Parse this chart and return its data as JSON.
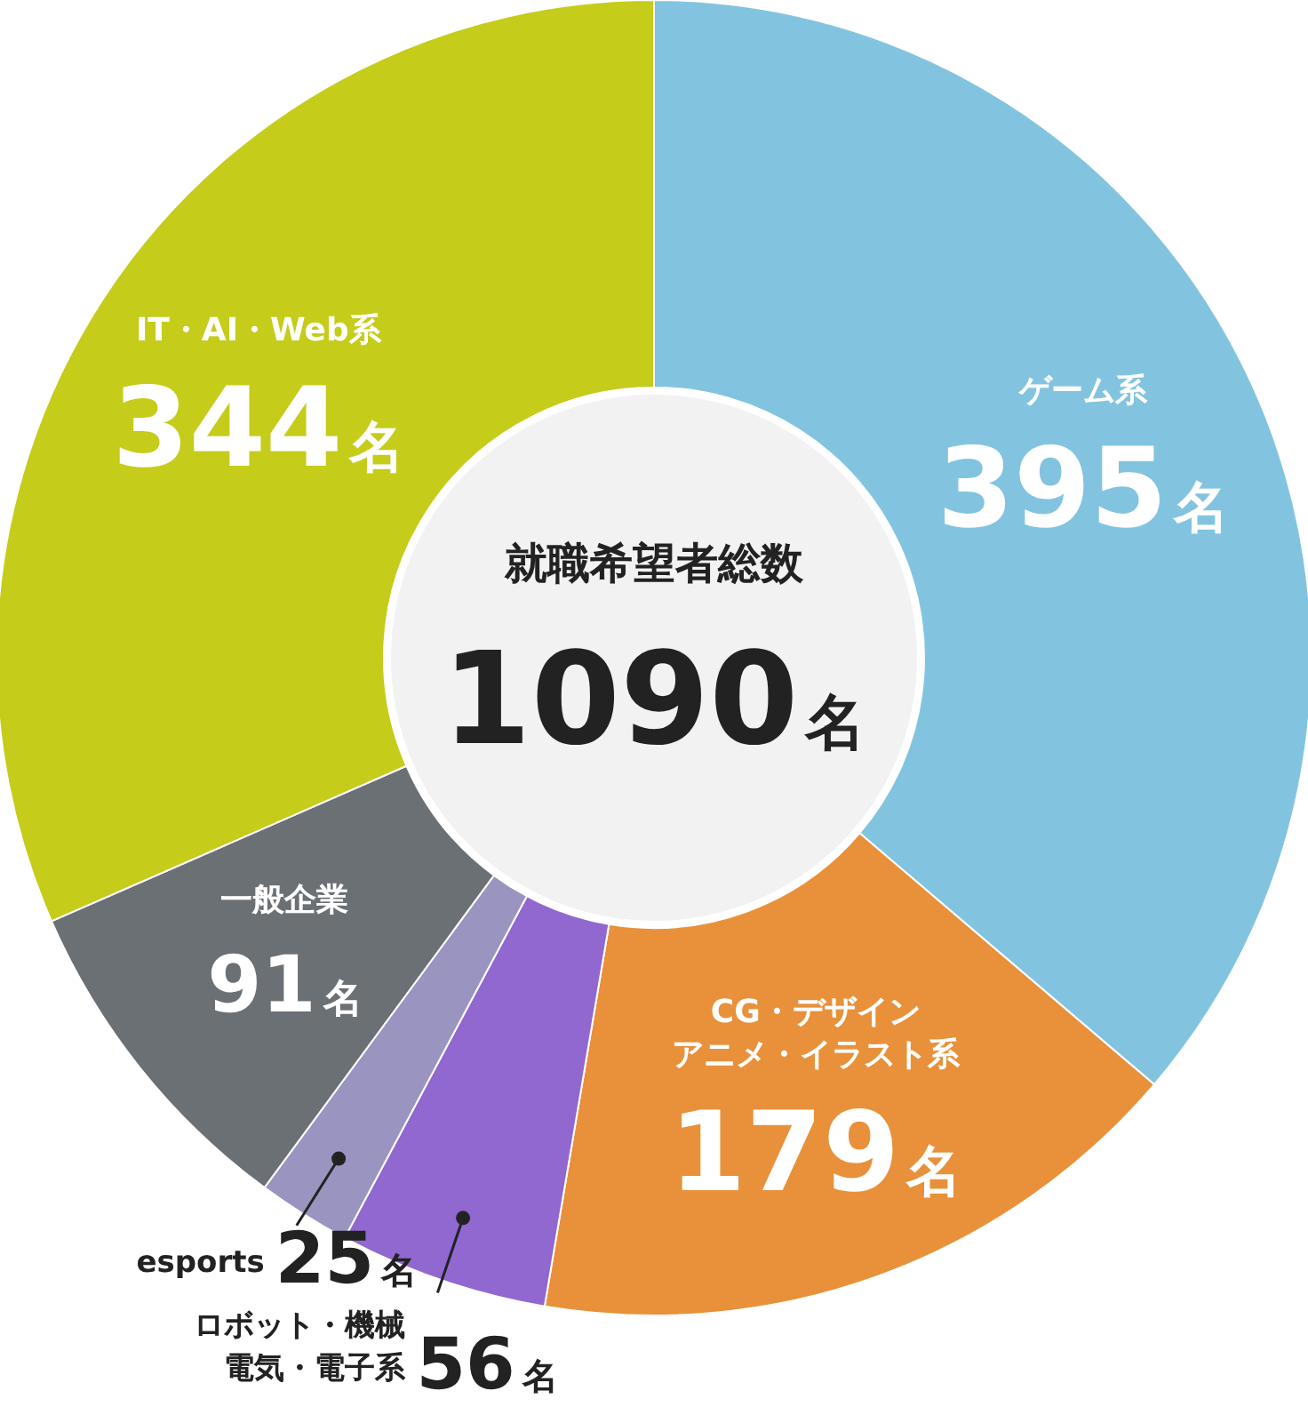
{
  "chart_data": {
    "type": "donut",
    "categories": [
      "ゲーム系",
      "CG・デザインアニメ・イラスト系",
      "ロボット・機械電気・電子系",
      "esports",
      "一般企業",
      "IT・AI・Web系"
    ],
    "values": [
      395,
      179,
      56,
      25,
      91,
      344
    ],
    "colors": [
      "#82c4e0",
      "#e8913a",
      "#9068d0",
      "#9a94c0",
      "#6b7075",
      "#c5cc1a"
    ],
    "value_labels": [
      "395名",
      "179名",
      "56名",
      "25名",
      "91名",
      "344名"
    ],
    "annotations": [
      "就職希望者総数",
      "1090名"
    ]
  }
}
